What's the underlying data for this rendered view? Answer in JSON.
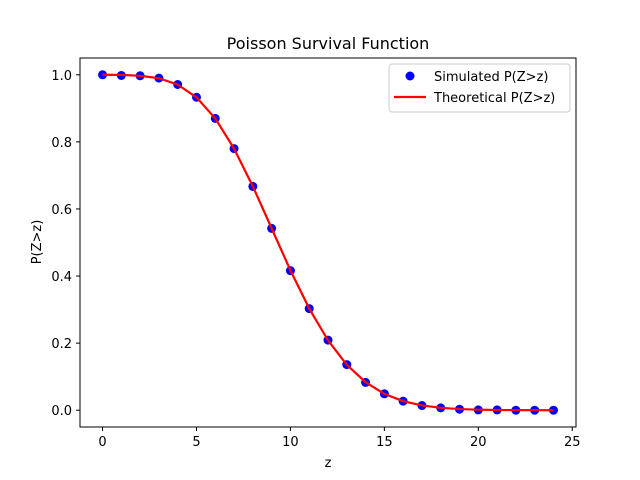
{
  "chart_data": {
    "type": "line",
    "title": "Poisson Survival Function",
    "xlabel": "z",
    "ylabel": "P(Z>z)",
    "xlim": [
      -1.2,
      25.2
    ],
    "ylim": [
      -0.05,
      1.05
    ],
    "xticks": [
      0,
      5,
      10,
      15,
      20,
      25
    ],
    "yticks": [
      0.0,
      0.2,
      0.4,
      0.6,
      0.8,
      1.0
    ],
    "xtick_labels": [
      "0",
      "5",
      "10",
      "15",
      "20",
      "25"
    ],
    "ytick_labels": [
      "0.0",
      "0.2",
      "0.4",
      "0.6",
      "0.8",
      "1.0"
    ],
    "grid": false,
    "legend_position": "top-right",
    "x": [
      0,
      1,
      2,
      3,
      4,
      5,
      6,
      7,
      8,
      9,
      10,
      11,
      12,
      13,
      14,
      15,
      16,
      17,
      18,
      19,
      20,
      21,
      22,
      23,
      24
    ],
    "series": [
      {
        "name": "Simulated P(Z>z)",
        "style": "markers",
        "color": "#0000ff",
        "values": [
          1.0,
          0.998,
          0.997,
          0.99,
          0.971,
          0.933,
          0.87,
          0.78,
          0.667,
          0.542,
          0.416,
          0.303,
          0.209,
          0.136,
          0.083,
          0.049,
          0.027,
          0.014,
          0.007,
          0.003,
          0.001,
          0.001,
          0.0,
          0.0,
          0.0
        ]
      },
      {
        "name": "Theoretical P(Z>z)",
        "style": "line",
        "color": "#ff0000",
        "values": [
          1.0,
          0.9995,
          0.997,
          0.9897,
          0.9707,
          0.9329,
          0.8699,
          0.7798,
          0.6672,
          0.5421,
          0.417,
          0.3032,
          0.2084,
          0.1355,
          0.0835,
          0.0487,
          0.027,
          0.0143,
          0.0072,
          0.0035,
          0.0016,
          0.0007,
          0.0003,
          0.0001,
          0.0
        ]
      }
    ]
  }
}
